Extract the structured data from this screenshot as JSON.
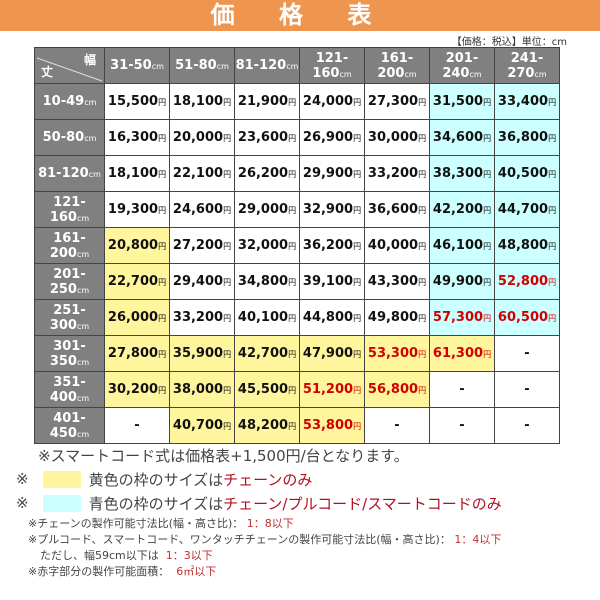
{
  "title": "価 格 表",
  "unit_note": "【価格：税込】単位：cm",
  "corner": {
    "width": "幅",
    "height": "丈"
  },
  "cm": "cm",
  "yen": "円",
  "colors": {
    "header": "#808080",
    "yellow": "#fff59d",
    "cyan": "#ccffff",
    "red": "#d00000",
    "title_bar": "#ee9650"
  },
  "columns": [
    "31-50",
    "51-80",
    "81-120",
    "121-160",
    "161-200",
    "201-240",
    "241-270"
  ],
  "rows": [
    {
      "h": "10-49",
      "cells": [
        [
          "15,500",
          "w"
        ],
        [
          "18,100",
          "w"
        ],
        [
          "21,900",
          "w"
        ],
        [
          "24,000",
          "w"
        ],
        [
          "27,300",
          "w"
        ],
        [
          "31,500",
          "c"
        ],
        [
          "33,400",
          "c"
        ]
      ]
    },
    {
      "h": "50-80",
      "cells": [
        [
          "16,300",
          "w"
        ],
        [
          "20,000",
          "w"
        ],
        [
          "23,600",
          "w"
        ],
        [
          "26,900",
          "w"
        ],
        [
          "30,000",
          "w"
        ],
        [
          "34,600",
          "c"
        ],
        [
          "36,800",
          "c"
        ]
      ]
    },
    {
      "h": "81-120",
      "cells": [
        [
          "18,100",
          "w"
        ],
        [
          "22,100",
          "w"
        ],
        [
          "26,200",
          "w"
        ],
        [
          "29,900",
          "w"
        ],
        [
          "33,200",
          "w"
        ],
        [
          "38,300",
          "c"
        ],
        [
          "40,500",
          "c"
        ]
      ]
    },
    {
      "h": "121-160",
      "cells": [
        [
          "19,300",
          "w"
        ],
        [
          "24,600",
          "w"
        ],
        [
          "29,000",
          "w"
        ],
        [
          "32,900",
          "w"
        ],
        [
          "36,600",
          "w"
        ],
        [
          "42,200",
          "c"
        ],
        [
          "44,700",
          "c"
        ]
      ]
    },
    {
      "h": "161-200",
      "cells": [
        [
          "20,800",
          "y"
        ],
        [
          "27,200",
          "w"
        ],
        [
          "32,000",
          "w"
        ],
        [
          "36,200",
          "w"
        ],
        [
          "40,000",
          "w"
        ],
        [
          "46,100",
          "c"
        ],
        [
          "48,800",
          "c"
        ]
      ]
    },
    {
      "h": "201-250",
      "cells": [
        [
          "22,700",
          "y"
        ],
        [
          "29,400",
          "w"
        ],
        [
          "34,800",
          "w"
        ],
        [
          "39,100",
          "w"
        ],
        [
          "43,300",
          "w"
        ],
        [
          "49,900",
          "c"
        ],
        [
          "52,800",
          "cr"
        ]
      ]
    },
    {
      "h": "251-300",
      "cells": [
        [
          "26,000",
          "y"
        ],
        [
          "33,200",
          "w"
        ],
        [
          "40,100",
          "w"
        ],
        [
          "44,800",
          "w"
        ],
        [
          "49,800",
          "w"
        ],
        [
          "57,300",
          "cr"
        ],
        [
          "60,500",
          "cr"
        ]
      ]
    },
    {
      "h": "301-350",
      "cells": [
        [
          "27,800",
          "y"
        ],
        [
          "35,900",
          "y"
        ],
        [
          "42,700",
          "y"
        ],
        [
          "47,900",
          "y"
        ],
        [
          "53,300",
          "yr"
        ],
        [
          "61,300",
          "yr"
        ],
        [
          "-",
          "w"
        ]
      ]
    },
    {
      "h": "351-400",
      "cells": [
        [
          "30,200",
          "y"
        ],
        [
          "38,000",
          "y"
        ],
        [
          "45,500",
          "y"
        ],
        [
          "51,200",
          "yr"
        ],
        [
          "56,800",
          "yr"
        ],
        [
          "-",
          "w"
        ],
        [
          "-",
          "w"
        ]
      ]
    },
    {
      "h": "401-450",
      "cells": [
        [
          "-",
          "w"
        ],
        [
          "40,700",
          "y"
        ],
        [
          "48,200",
          "y"
        ],
        [
          "53,800",
          "yr"
        ],
        [
          "-",
          "w"
        ],
        [
          "-",
          "w"
        ],
        [
          "-",
          "w"
        ]
      ]
    }
  ],
  "notes": {
    "smartcord": "※スマートコード式は価格表+1,500円/台となります。",
    "mark": "※",
    "yellow_text": "黄色の枠のサイズは",
    "yellow_red": "チェーンのみ",
    "cyan_text": "青色の枠のサイズは",
    "cyan_red": "チェーン/プルコード/スマートコードのみ",
    "chain_ratio": "※チェーンの製作可能寸法比(幅・高さ比)：",
    "chain_ratio_val": "1：8以下",
    "pull_ratio": "※プルコード、スマートコード、ワンタッチチェーンの製作可能寸法比(幅・高さ比)：",
    "pull_ratio_val": "1：4以下",
    "narrow": "ただし、幅59cm以下は",
    "narrow_val": "1：3以下",
    "area": "※赤字部分の製作可能面積：",
    "area_val": "6㎡以下"
  }
}
